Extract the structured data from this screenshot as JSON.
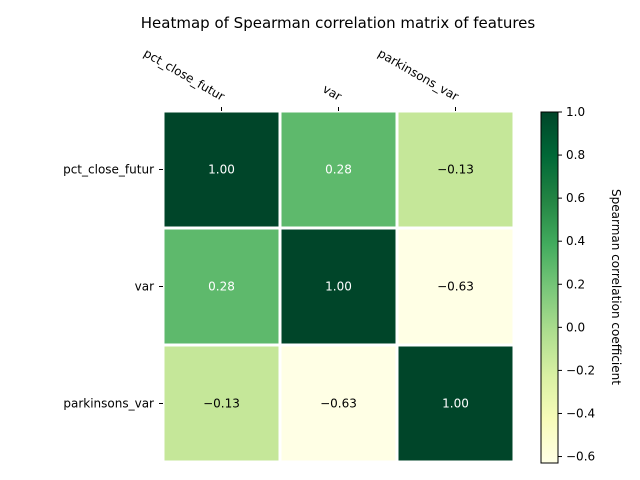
{
  "chart_data": {
    "type": "heatmap",
    "title": "Heatmap of Spearman correlation matrix of features",
    "labels": [
      "pct_close_futur",
      "var",
      "parkinsons_var"
    ],
    "values": [
      [
        1.0,
        0.28,
        -0.13
      ],
      [
        0.28,
        1.0,
        -0.63
      ],
      [
        -0.13,
        -0.63,
        1.0
      ]
    ],
    "annotations": [
      [
        "1.00",
        "0.28",
        "−0.13"
      ],
      [
        "0.28",
        "1.00",
        "−0.63"
      ],
      [
        "−0.13",
        "−0.63",
        "1.00"
      ]
    ],
    "colorbar": {
      "label": "Spearman correlation coefficient",
      "range": [
        -0.63,
        1.0
      ],
      "ticks": [
        1.0,
        0.8,
        0.6,
        0.4,
        0.2,
        0.0,
        -0.2,
        -0.4,
        -0.6
      ],
      "tick_labels": [
        "1.0",
        "0.8",
        "0.6",
        "0.4",
        "0.2",
        "0.0",
        "−0.2",
        "−0.4",
        "−0.6"
      ]
    },
    "colormap": [
      "#ffffe5",
      "#f7fcb9",
      "#d9f0a3",
      "#addd8e",
      "#78c679",
      "#41ab5d",
      "#238443",
      "#006837",
      "#004529"
    ],
    "grid": false
  }
}
